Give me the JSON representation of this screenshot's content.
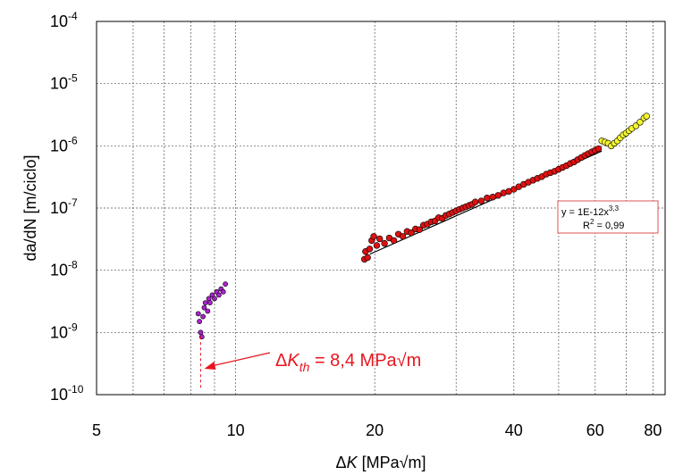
{
  "chart_data": {
    "type": "scatter",
    "title": "",
    "xlabel": {
      "delta": "Δ",
      "K": "K",
      "rest": " [MPa√m]"
    },
    "ylabel": "da/dN [m/ciclo]",
    "x_scale": "log",
    "y_scale": "log",
    "xlim": [
      5,
      85
    ],
    "ylim": [
      1e-10,
      0.0001
    ],
    "grid": true,
    "x_ticks": [
      {
        "value": 5,
        "label": "5"
      },
      {
        "value": 10,
        "label": "10"
      },
      {
        "value": 20,
        "label": "20"
      },
      {
        "value": 40,
        "label": "40"
      },
      {
        "value": 60,
        "label": "60"
      },
      {
        "value": 80,
        "label": "80"
      }
    ],
    "x_grid_values": [
      5,
      6,
      7,
      8,
      9,
      10,
      20,
      30,
      40,
      50,
      60,
      70,
      80
    ],
    "y_ticks": [
      {
        "value": 1e-10,
        "base": "10",
        "exp": "-10"
      },
      {
        "value": 1e-09,
        "base": "10",
        "exp": "-9"
      },
      {
        "value": 1e-08,
        "base": "10",
        "exp": "-8"
      },
      {
        "value": 1e-07,
        "base": "10",
        "exp": "-7"
      },
      {
        "value": 1e-06,
        "base": "10",
        "exp": "-6"
      },
      {
        "value": 1e-05,
        "base": "10",
        "exp": "-5"
      },
      {
        "value": 0.0001,
        "base": "10",
        "exp": "-4"
      }
    ],
    "colors": {
      "red": "#dd1111",
      "purple": "#aa22cc",
      "yellow": "#f5f530",
      "fit": "#000000",
      "threshold": "#e8141e",
      "eqbox": "#e05050"
    },
    "series": [
      {
        "color": "purple",
        "points": [
          [
            8.3,
            2e-09
          ],
          [
            8.35,
            1.5e-09
          ],
          [
            8.4,
            1e-09
          ],
          [
            8.45,
            8.5e-10
          ],
          [
            8.5,
            1.8e-09
          ],
          [
            8.55,
            2.5e-09
          ],
          [
            8.6,
            3e-09
          ],
          [
            8.7,
            2.2e-09
          ],
          [
            8.75,
            3.5e-09
          ],
          [
            8.8,
            3e-09
          ],
          [
            8.9,
            4e-09
          ],
          [
            9.0,
            3.5e-09
          ],
          [
            9.1,
            4.5e-09
          ],
          [
            9.2,
            4e-09
          ],
          [
            9.3,
            5e-09
          ],
          [
            9.4,
            4.5e-09
          ],
          [
            9.5,
            6e-09
          ]
        ]
      },
      {
        "color": "red",
        "points": [
          [
            19.0,
            1.5e-08
          ],
          [
            19.1,
            2e-08
          ],
          [
            19.3,
            1.6e-08
          ],
          [
            19.5,
            2.2e-08
          ],
          [
            19.7,
            3e-08
          ],
          [
            19.9,
            3.5e-08
          ],
          [
            20.2,
            2.5e-08
          ],
          [
            20.5,
            3.2e-08
          ],
          [
            21.0,
            2.7e-08
          ],
          [
            21.5,
            3.3e-08
          ],
          [
            22.0,
            3e-08
          ],
          [
            22.5,
            3.8e-08
          ],
          [
            23.0,
            3.5e-08
          ],
          [
            23.5,
            4.2e-08
          ],
          [
            24.0,
            4e-08
          ],
          [
            24.5,
            4.6e-08
          ],
          [
            25.0,
            4.5e-08
          ],
          [
            25.5,
            5.3e-08
          ],
          [
            26.0,
            5.5e-08
          ],
          [
            26.5,
            6e-08
          ],
          [
            27.0,
            6.2e-08
          ],
          [
            27.5,
            7e-08
          ],
          [
            28.0,
            6.8e-08
          ],
          [
            28.5,
            7.6e-08
          ],
          [
            29.0,
            8e-08
          ],
          [
            29.5,
            8.5e-08
          ],
          [
            30.0,
            9e-08
          ],
          [
            30.5,
            9.5e-08
          ],
          [
            31.0,
            1e-07
          ],
          [
            31.5,
            1.05e-07
          ],
          [
            32.0,
            1.1e-07
          ],
          [
            32.5,
            1.15e-07
          ],
          [
            33.0,
            1.25e-07
          ],
          [
            34.0,
            1.3e-07
          ],
          [
            35.0,
            1.45e-07
          ],
          [
            36.0,
            1.5e-07
          ],
          [
            37.0,
            1.6e-07
          ],
          [
            38.0,
            1.75e-07
          ],
          [
            39.0,
            1.85e-07
          ],
          [
            40.0,
            2e-07
          ],
          [
            41.0,
            2.2e-07
          ],
          [
            42.0,
            2.4e-07
          ],
          [
            43.0,
            2.6e-07
          ],
          [
            44.0,
            2.8e-07
          ],
          [
            45.0,
            3e-07
          ],
          [
            46.0,
            3.2e-07
          ],
          [
            47.0,
            3.5e-07
          ],
          [
            48.0,
            3.7e-07
          ],
          [
            49.0,
            3.9e-07
          ],
          [
            50.0,
            4.2e-07
          ],
          [
            51.0,
            4.5e-07
          ],
          [
            52.0,
            4.8e-07
          ],
          [
            53.0,
            5.2e-07
          ],
          [
            54.0,
            5.5e-07
          ],
          [
            55.0,
            6e-07
          ],
          [
            56.0,
            6.5e-07
          ],
          [
            57.0,
            7e-07
          ],
          [
            58.0,
            7.5e-07
          ],
          [
            59.0,
            8e-07
          ],
          [
            60.0,
            8.5e-07
          ],
          [
            61.0,
            9e-07
          ]
        ]
      },
      {
        "color": "yellow",
        "points": [
          [
            62.0,
            1.2e-06
          ],
          [
            63.0,
            1.15e-06
          ],
          [
            64.0,
            1.1e-06
          ],
          [
            65.0,
            1e-06
          ],
          [
            66.0,
            1.1e-06
          ],
          [
            67.0,
            1.2e-06
          ],
          [
            68.0,
            1.35e-06
          ],
          [
            69.0,
            1.5e-06
          ],
          [
            70.0,
            1.6e-06
          ],
          [
            71.0,
            1.75e-06
          ],
          [
            72.0,
            1.9e-06
          ],
          [
            73.5,
            2.1e-06
          ],
          [
            75.0,
            2.4e-06
          ],
          [
            76.5,
            2.8e-06
          ],
          [
            77.5,
            3e-06
          ]
        ]
      }
    ],
    "fit": {
      "coef": 1e-12,
      "exp": 3.3,
      "x_range": [
        19.5,
        62
      ]
    },
    "equation": {
      "main": "y = 1E-12x",
      "sup": "3,3",
      "r_prefix": "R",
      "r_sup": "2",
      "r_rest": " = 0,99"
    },
    "threshold": {
      "value": 8.4,
      "label_delta": "Δ",
      "label_K": "K",
      "label_sub": "th",
      "label_rest": " = 8,4 MPa√m"
    }
  }
}
